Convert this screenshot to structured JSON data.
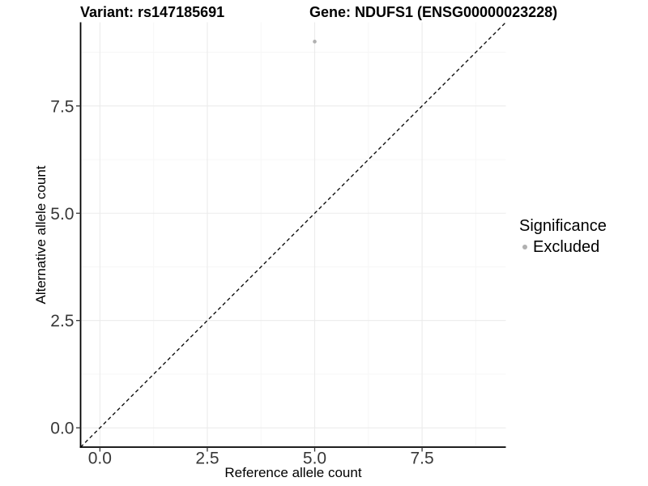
{
  "title": {
    "variant": "Variant: rs147185691",
    "gene": "Gene: NDUFS1 (ENSG00000023228)"
  },
  "axes": {
    "x_label": "Reference allele count",
    "y_label": "Alternative allele count"
  },
  "legend": {
    "title": "Significance",
    "items": [
      {
        "label": "Excluded",
        "color": "#b0b0b0"
      }
    ]
  },
  "chart_data": {
    "type": "scatter",
    "title": "Variant: rs147185691 — Gene: NDUFS1 (ENSG00000023228)",
    "xlabel": "Reference allele count",
    "ylabel": "Alternative allele count",
    "xlim": [
      -0.45,
      9.45
    ],
    "ylim": [
      -0.45,
      9.45
    ],
    "x_ticks": [
      0.0,
      2.5,
      5.0,
      7.5
    ],
    "x_tick_labels": [
      "0.0",
      "2.5",
      "5.0",
      "7.5"
    ],
    "y_ticks": [
      0.0,
      2.5,
      5.0,
      7.5
    ],
    "y_tick_labels": [
      "0.0",
      "2.5",
      "5.0",
      "7.5"
    ],
    "minor_gridlines": [
      1.25,
      3.75,
      6.25,
      8.75
    ],
    "grid": true,
    "legend_position": "right",
    "series": [
      {
        "name": "Excluded",
        "color": "#b0b0b0",
        "points": [
          {
            "x": 5,
            "y": 9
          }
        ]
      }
    ],
    "reference_line": {
      "type": "identity",
      "slope": 1,
      "intercept": 0,
      "linetype": "dashed",
      "color": "#111111"
    }
  },
  "colors": {
    "background": "#ffffff",
    "grid_major": "#ebebeb",
    "grid_minor": "#f6f6f6",
    "axis_line": "#000000",
    "tick_mark": "#333333",
    "tick_label": "#383838",
    "point": "#b0b0b0"
  }
}
